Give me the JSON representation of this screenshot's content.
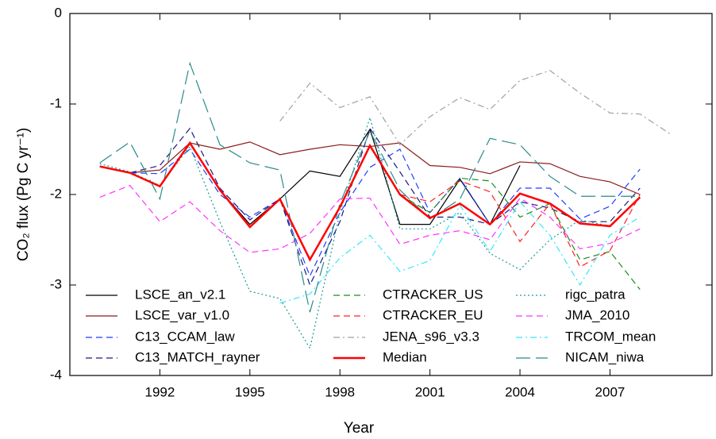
{
  "chart_data": {
    "type": "line",
    "xlabel": "Year",
    "ylabel": "CO₂ flux (Pg C yr⁻¹)",
    "x": [
      1990,
      1991,
      1992,
      1993,
      1994,
      1995,
      1996,
      1997,
      1998,
      1999,
      2000,
      2001,
      2002,
      2003,
      2004,
      2005,
      2006,
      2007,
      2008,
      2009
    ],
    "xlim": [
      1989,
      2010.4
    ],
    "xticks": [
      1992,
      1995,
      1998,
      2001,
      2004,
      2007
    ],
    "ylim": [
      -4,
      0
    ],
    "yticks": [
      -4,
      -3,
      -2,
      -1,
      0
    ],
    "series": [
      {
        "name": "LSCE_an_v2.1",
        "color": "#000000",
        "dash": "solid",
        "values": [
          -1.69,
          -1.76,
          -1.91,
          -1.43,
          -1.95,
          -2.33,
          -2.05,
          -1.74,
          -1.8,
          -1.28,
          -2.33,
          -2.33,
          -1.83,
          -2.33,
          -1.68,
          null,
          null,
          null,
          null,
          null
        ]
      },
      {
        "name": "LSCE_var_v1.0",
        "color": "#8b1a1a",
        "dash": "solid",
        "values": [
          -1.69,
          -1.76,
          -1.73,
          -1.43,
          -1.5,
          -1.42,
          -1.56,
          -1.5,
          -1.45,
          -1.47,
          -1.43,
          -1.68,
          -1.7,
          -1.77,
          -1.64,
          -1.66,
          -1.8,
          -1.86,
          -2.0,
          null
        ]
      },
      {
        "name": "C13_CCAM_law",
        "color": "#1f3fff",
        "dash": "dashed",
        "values": [
          -1.69,
          -1.76,
          -1.77,
          -1.5,
          -2.0,
          -2.25,
          -2.05,
          -2.9,
          -2.2,
          -1.7,
          -1.5,
          -2.2,
          -1.82,
          -2.33,
          -1.93,
          -1.93,
          -2.27,
          -2.13,
          -1.72,
          null
        ]
      },
      {
        "name": "C13_MATCH_rayner",
        "color": "#1a1a80",
        "dash": "dashed",
        "values": [
          -1.69,
          -1.76,
          -1.68,
          -1.27,
          -1.93,
          -2.28,
          -2.05,
          -3.0,
          -2.3,
          -1.27,
          -1.75,
          -2.25,
          -2.25,
          -2.33,
          -2.08,
          -2.15,
          -2.3,
          -2.3,
          -1.93,
          null
        ]
      },
      {
        "name": "CTRACKER_US",
        "color": "#1a8c1a",
        "dash": "dashed",
        "values": [
          null,
          null,
          null,
          null,
          null,
          null,
          null,
          null,
          null,
          null,
          -2.0,
          -2.2,
          -1.82,
          -1.85,
          -2.25,
          -2.1,
          -2.72,
          -2.63,
          -3.05,
          null
        ]
      },
      {
        "name": "CTRACKER_EU",
        "color": "#ff2020",
        "dash": "dashed",
        "values": [
          null,
          null,
          null,
          null,
          null,
          null,
          null,
          null,
          null,
          null,
          -2.0,
          -2.08,
          -1.85,
          -1.97,
          -2.52,
          -2.1,
          -2.8,
          -2.62,
          -2.0,
          null
        ]
      },
      {
        "name": "JENA_s96_v3.3",
        "color": "#a0a0a0",
        "dash": "dashdot",
        "values": [
          null,
          null,
          null,
          null,
          null,
          null,
          -1.19,
          -0.77,
          -1.04,
          -0.92,
          -1.45,
          -1.14,
          -0.93,
          -1.06,
          -0.74,
          -0.63,
          -0.88,
          -1.1,
          -1.11,
          -1.33
        ]
      },
      {
        "name": "Median",
        "color": "#ff0000",
        "dash": "solid",
        "width": 2.5,
        "values": [
          -1.69,
          -1.76,
          -1.91,
          -1.43,
          -1.95,
          -2.36,
          -2.05,
          -2.72,
          -2.14,
          -1.46,
          -2.0,
          -2.26,
          -2.1,
          -2.33,
          -1.99,
          -2.1,
          -2.32,
          -2.35,
          -2.03,
          null
        ]
      },
      {
        "name": "rigc_patra",
        "color": "#1a9a9a",
        "dash": "dotted",
        "values": [
          -1.66,
          -1.75,
          -1.9,
          -1.47,
          -2.3,
          -3.07,
          -3.15,
          -3.7,
          -2.2,
          -1.15,
          -2.38,
          -2.38,
          -2.2,
          -2.65,
          -2.83,
          -2.5,
          -2.28,
          -2.35,
          -2.03,
          null
        ]
      },
      {
        "name": "JMA_2010",
        "color": "#ff33ff",
        "dash": "dashed",
        "values": [
          -2.03,
          -1.9,
          -2.3,
          -2.08,
          -2.4,
          -2.64,
          -2.6,
          -2.43,
          -2.05,
          -2.04,
          -2.55,
          -2.45,
          -2.4,
          -2.5,
          -2.04,
          -2.25,
          -2.6,
          -2.54,
          -2.38,
          null
        ]
      },
      {
        "name": "TRCOM_mean",
        "color": "#33e6ff",
        "dash": "dashdot",
        "values": [
          null,
          null,
          null,
          null,
          null,
          null,
          -3.2,
          -3.1,
          -2.7,
          -2.45,
          -2.85,
          -2.73,
          -2.12,
          -2.63,
          -2.08,
          -2.45,
          -3.0,
          -2.45,
          -2.25,
          null
        ]
      },
      {
        "name": "NICAM_niwa",
        "color": "#2a8a8a",
        "dash": "longdash",
        "values": [
          -1.65,
          -1.42,
          -2.05,
          -0.55,
          -1.45,
          -1.65,
          -1.73,
          -3.3,
          -2.1,
          -1.3,
          -1.95,
          -2.27,
          -2.05,
          -1.38,
          -1.45,
          -1.8,
          -2.02,
          -2.02,
          -2.02,
          null
        ]
      }
    ]
  }
}
